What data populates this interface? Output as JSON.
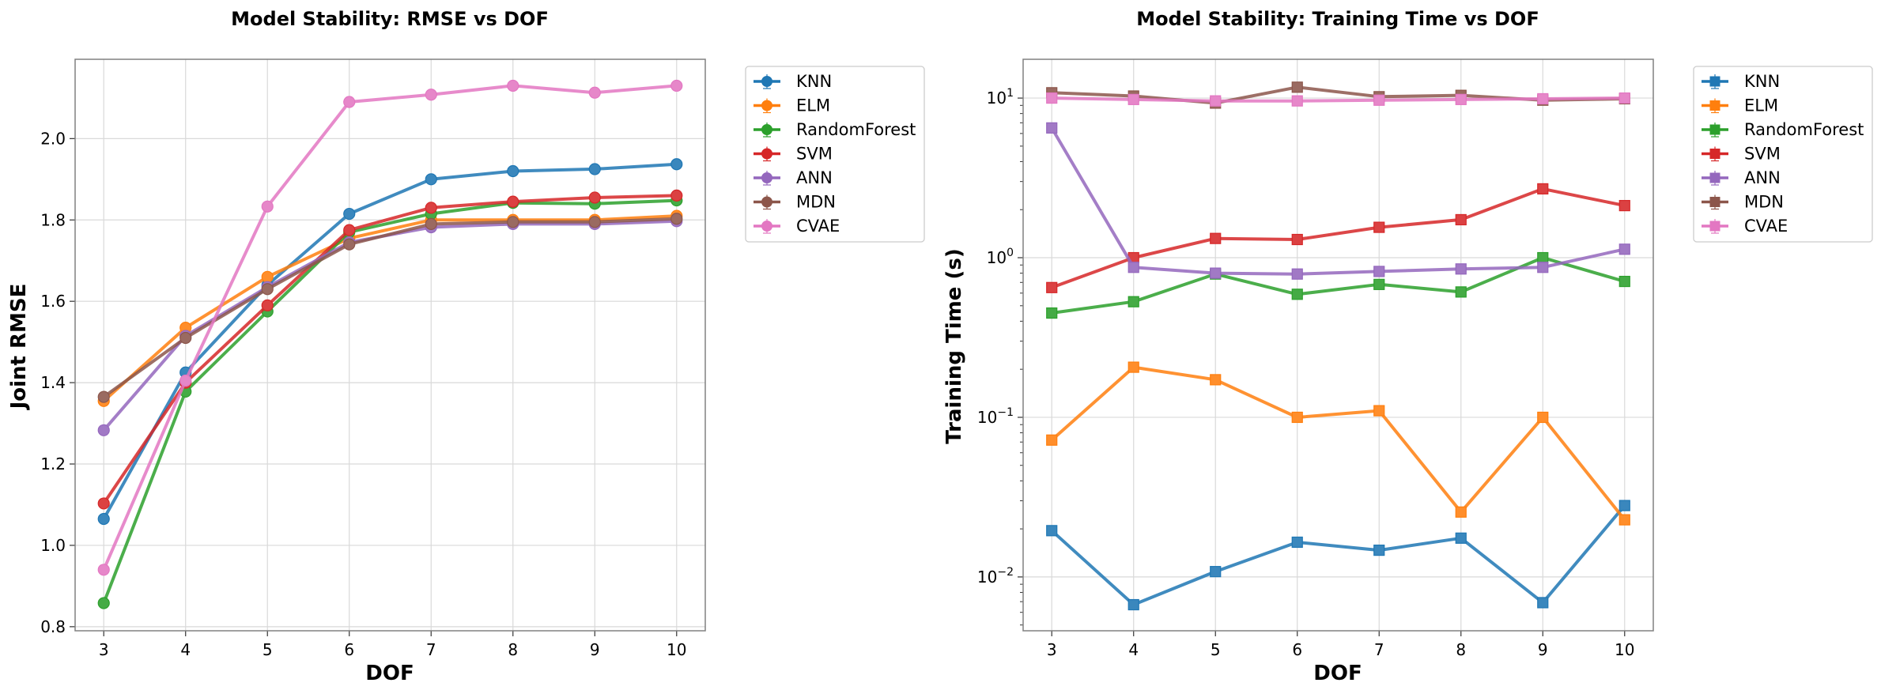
{
  "colors": {
    "KNN": "#1f77b4",
    "ELM": "#ff7f0e",
    "RandomForest": "#2ca02c",
    "SVM": "#d62728",
    "ANN": "#9467bd",
    "MDN": "#8c564b",
    "CVAE": "#e377c2",
    "grid": "#d9d9d9",
    "frame": "#808080"
  },
  "chart_data": [
    {
      "type": "line",
      "title": "Model Stability: RMSE vs DOF",
      "xlabel": "DOF",
      "ylabel": "Joint RMSE",
      "yscale": "linear",
      "grid": true,
      "legend": "outside-right-top",
      "marker": "circle",
      "x": [
        3,
        4,
        5,
        6,
        7,
        8,
        9,
        10
      ],
      "xlim": [
        2.65,
        10.35
      ],
      "ylim": [
        0.79,
        2.195
      ],
      "yticks": [
        0.8,
        1.0,
        1.2,
        1.4,
        1.6,
        1.8,
        2.0
      ],
      "ytick_labels": [
        "0.8",
        "1.0",
        "1.2",
        "1.4",
        "1.6",
        "1.8",
        "2.0"
      ],
      "series": [
        {
          "name": "KNN",
          "values": [
            1.065,
            1.425,
            1.64,
            1.815,
            1.9,
            1.92,
            1.925,
            1.937
          ]
        },
        {
          "name": "ELM",
          "values": [
            1.355,
            1.535,
            1.66,
            1.755,
            1.8,
            1.8,
            1.8,
            1.81
          ]
        },
        {
          "name": "RandomForest",
          "values": [
            0.858,
            1.378,
            1.575,
            1.77,
            1.815,
            1.842,
            1.84,
            1.848
          ]
        },
        {
          "name": "SVM",
          "values": [
            1.103,
            1.4,
            1.59,
            1.775,
            1.83,
            1.845,
            1.855,
            1.86
          ]
        },
        {
          "name": "ANN",
          "values": [
            1.283,
            1.515,
            1.635,
            1.745,
            1.782,
            1.79,
            1.79,
            1.797
          ]
        },
        {
          "name": "MDN",
          "values": [
            1.365,
            1.51,
            1.63,
            1.74,
            1.79,
            1.795,
            1.795,
            1.803
          ]
        },
        {
          "name": "CVAE",
          "values": [
            0.94,
            1.405,
            1.833,
            2.09,
            2.108,
            2.13,
            2.113,
            2.13
          ]
        }
      ]
    },
    {
      "type": "line",
      "title": "Model Stability: Training Time vs DOF",
      "xlabel": "DOF",
      "ylabel": "Training Time (s)",
      "yscale": "log",
      "grid": true,
      "legend": "outside-right-top",
      "marker": "square",
      "x": [
        3,
        4,
        5,
        6,
        7,
        8,
        9,
        10
      ],
      "xlim": [
        2.65,
        10.35
      ],
      "ylim": [
        0.0046,
        17.5
      ],
      "yticks": [
        0.01,
        0.1,
        1,
        10
      ],
      "ytick_labels": [
        {
          "base": "10",
          "exp": "−2"
        },
        {
          "base": "10",
          "exp": "−1"
        },
        {
          "base": "10",
          "exp": "0"
        },
        {
          "base": "10",
          "exp": "1"
        }
      ],
      "series": [
        {
          "name": "KNN",
          "values": [
            0.0195,
            0.0067,
            0.0108,
            0.0165,
            0.0147,
            0.0175,
            0.0069,
            0.028
          ]
        },
        {
          "name": "ELM",
          "values": [
            0.072,
            0.206,
            0.172,
            0.1,
            0.11,
            0.0255,
            0.1,
            0.0228
          ]
        },
        {
          "name": "RandomForest",
          "values": [
            0.45,
            0.53,
            0.79,
            0.59,
            0.68,
            0.61,
            1.0,
            0.71
          ]
        },
        {
          "name": "SVM",
          "values": [
            0.65,
            1.0,
            1.32,
            1.3,
            1.55,
            1.73,
            2.7,
            2.12
          ]
        },
        {
          "name": "ANN",
          "values": [
            6.5,
            0.87,
            0.8,
            0.79,
            0.82,
            0.85,
            0.87,
            1.13
          ]
        },
        {
          "name": "MDN",
          "values": [
            10.8,
            10.3,
            9.3,
            11.7,
            10.2,
            10.4,
            9.7,
            9.9
          ]
        },
        {
          "name": "CVAE",
          "values": [
            10.0,
            9.8,
            9.6,
            9.6,
            9.7,
            9.8,
            9.9,
            10.0
          ]
        }
      ]
    }
  ]
}
